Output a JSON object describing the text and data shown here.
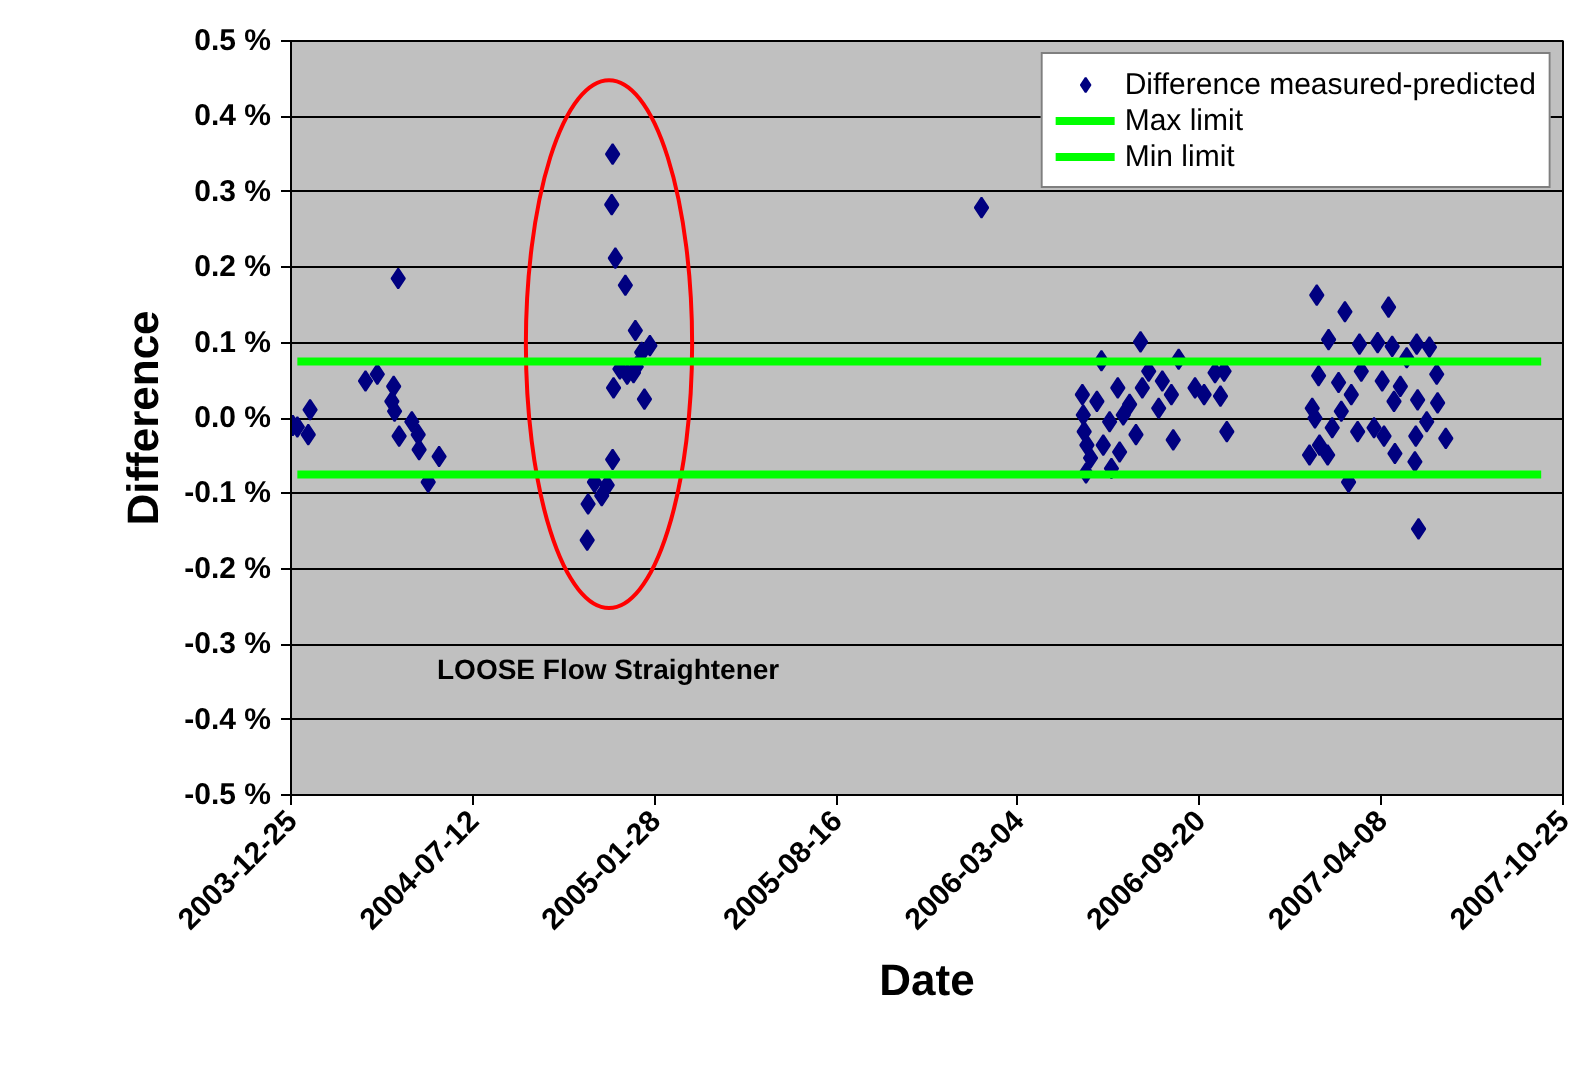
{
  "chart_data": {
    "type": "scatter",
    "xlabel": "Date",
    "ylabel": "Difference",
    "xlim": [
      "2003-12-25",
      "2007-10-25"
    ],
    "xticks": [
      "2003-12-25",
      "2004-07-12",
      "2005-01-28",
      "2005-08-16",
      "2006-03-04",
      "2006-09-20",
      "2007-04-08",
      "2007-10-25"
    ],
    "ylim": [
      -0.5,
      0.5
    ],
    "yticks": [
      {
        "value": -0.5,
        "label": "-0.5 %"
      },
      {
        "value": -0.4,
        "label": "-0.4 %"
      },
      {
        "value": -0.3,
        "label": "-0.3 %"
      },
      {
        "value": -0.2,
        "label": "-0.2 %"
      },
      {
        "value": -0.1,
        "label": "-0.1 %"
      },
      {
        "value": 0.0,
        "label": "0.0 %"
      },
      {
        "value": 0.1,
        "label": "0.1 %"
      },
      {
        "value": 0.2,
        "label": "0.2 %"
      },
      {
        "value": 0.3,
        "label": "0.3 %"
      },
      {
        "value": 0.4,
        "label": "0.4 %"
      },
      {
        "value": 0.5,
        "label": "0.5 %"
      }
    ],
    "grid": "y",
    "legend": "top right",
    "annotations": [
      "LOOSE Flow Straightener"
    ],
    "series": [
      {
        "name": "Difference measured-predicted",
        "marker": "diamond",
        "color": "#000080",
        "x": [
          "2004-01-01",
          "2004-01-15",
          "2004-01-13",
          "2003-12-27",
          "2004-04-21",
          "2004-03-16",
          "2004-03-29",
          "2004-04-16",
          "2004-04-14",
          "2004-04-17",
          "2004-05-06",
          "2004-04-22",
          "2004-05-13",
          "2004-05-14",
          "2004-06-05",
          "2004-05-24",
          "2004-12-13",
          "2004-12-12",
          "2004-12-16",
          "2004-12-27",
          "2005-01-07",
          "2005-01-23",
          "2005-01-14",
          "2004-12-21",
          "2005-01-05",
          "2004-12-29",
          "2004-12-14",
          "2005-01-17",
          "2004-12-13",
          "2004-11-23",
          "2004-12-07",
          "2004-12-01",
          "2004-11-16",
          "2004-11-15",
          "2005-01-08",
          "2006-01-23",
          "2006-07-17",
          "2006-06-04",
          "2006-07-26",
          "2006-08-28",
          "2006-10-17",
          "2006-06-22",
          "2006-08-10",
          "2006-09-15",
          "2006-10-13",
          "2006-09-25",
          "2006-05-30",
          "2006-05-15",
          "2006-07-05",
          "2006-08-06",
          "2006-06-13",
          "2006-05-16",
          "2006-07-12",
          "2006-10-20",
          "2006-08-22",
          "2006-05-19",
          "2006-06-06",
          "2006-06-24",
          "2006-05-23",
          "2006-06-15",
          "2006-05-18",
          "2006-07-19",
          "2006-08-20",
          "2006-06-28",
          "2006-05-14",
          "2006-10-07",
          "2007-01-27",
          "2007-02-27",
          "2007-04-16",
          "2007-02-09",
          "2007-03-15",
          "2007-04-04",
          "2007-04-20",
          "2007-05-17",
          "2007-05-31",
          "2007-05-06",
          "2007-01-29",
          "2007-03-17",
          "2007-02-20",
          "2007-04-09",
          "2007-06-08",
          "2007-04-29",
          "2007-03-06",
          "2007-01-22",
          "2007-04-22",
          "2007-05-18",
          "2007-06-09",
          "2007-02-23",
          "2007-01-25",
          "2007-05-28",
          "2007-02-13",
          "2007-03-13",
          "2007-03-31",
          "2007-04-11",
          "2007-06-18",
          "2007-05-16",
          "2007-01-30",
          "2007-01-19",
          "2007-02-08",
          "2007-04-23",
          "2007-05-15",
          "2007-03-03",
          "2007-05-19"
        ],
        "values": [
          -0.012,
          0.011,
          -0.022,
          -0.01,
          0.185,
          0.049,
          0.058,
          0.042,
          0.022,
          0.009,
          -0.005,
          -0.024,
          -0.022,
          -0.042,
          -0.051,
          -0.085,
          0.35,
          0.283,
          0.212,
          0.176,
          0.116,
          0.096,
          0.087,
          0.065,
          0.06,
          0.058,
          0.04,
          0.025,
          -0.055,
          -0.085,
          -0.089,
          -0.103,
          -0.114,
          -0.162,
          0.068,
          0.279,
          0.101,
          0.076,
          0.062,
          0.078,
          0.062,
          0.04,
          0.049,
          0.04,
          0.029,
          0.031,
          0.022,
          0.004,
          0.018,
          0.013,
          -0.005,
          -0.018,
          -0.022,
          -0.018,
          -0.029,
          -0.036,
          -0.036,
          -0.045,
          -0.053,
          -0.067,
          -0.073,
          0.04,
          0.031,
          0.004,
          0.031,
          0.06,
          0.163,
          0.141,
          0.147,
          0.104,
          0.098,
          0.1,
          0.095,
          0.098,
          0.094,
          0.08,
          0.056,
          0.062,
          0.047,
          0.049,
          0.058,
          0.042,
          0.031,
          0.013,
          0.022,
          0.024,
          0.02,
          0.009,
          0.0,
          -0.005,
          -0.013,
          -0.018,
          -0.013,
          -0.024,
          -0.027,
          -0.024,
          -0.036,
          -0.049,
          -0.049,
          -0.047,
          -0.058,
          -0.085,
          -0.147
        ]
      },
      {
        "name": "Max limit",
        "type": "line",
        "line_style": "solid",
        "color": "#00ff00",
        "x": [
          "2004-01-01",
          "2007-10-01"
        ],
        "values": [
          0.075,
          0.075
        ]
      },
      {
        "name": "Min limit",
        "type": "line",
        "line_style": "solid",
        "color": "#00ff00",
        "x": [
          "2004-01-01",
          "2007-10-01"
        ],
        "values": [
          -0.075,
          -0.075
        ]
      }
    ]
  }
}
